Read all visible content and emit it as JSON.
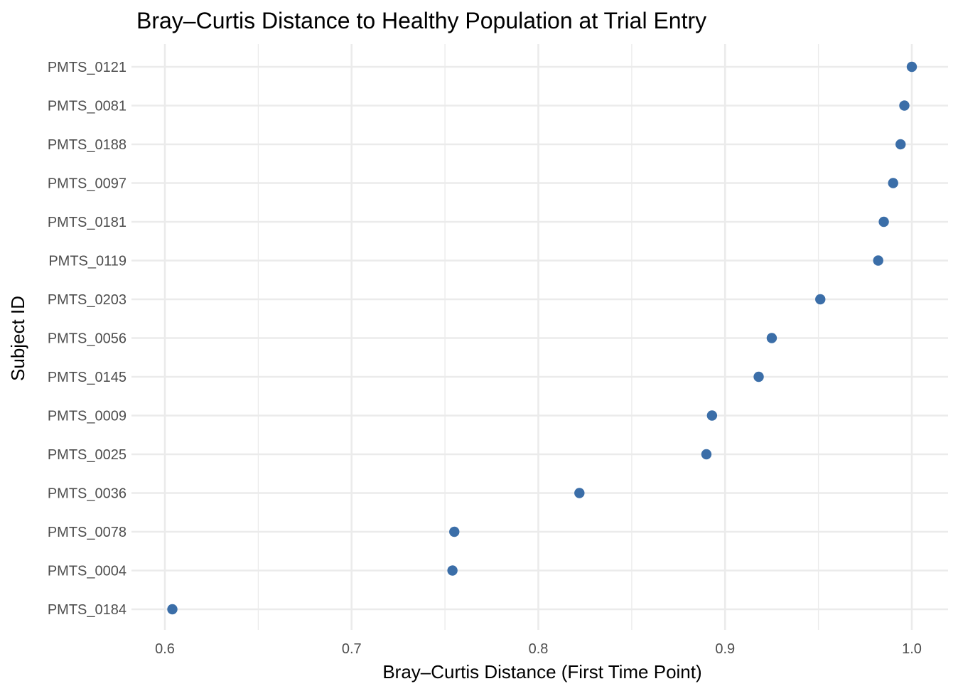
{
  "chart_data": {
    "type": "scatter",
    "title": "Bray–Curtis Distance to Healthy Population at Trial Entry",
    "xlabel": "Bray–Curtis Distance (First Time Point)",
    "ylabel": "Subject ID",
    "xlim": [
      0.6,
      1.0
    ],
    "xticks": [
      "0.6",
      "0.7",
      "0.8",
      "0.9",
      "1.0"
    ],
    "grid": true,
    "point_color": "#3b6ea8",
    "categories": [
      "PMTS_0121",
      "PMTS_0081",
      "PMTS_0188",
      "PMTS_0097",
      "PMTS_0181",
      "PMTS_0119",
      "PMTS_0203",
      "PMTS_0056",
      "PMTS_0145",
      "PMTS_0009",
      "PMTS_0025",
      "PMTS_0036",
      "PMTS_0078",
      "PMTS_0004",
      "PMTS_0184"
    ],
    "values": [
      1.0,
      0.996,
      0.994,
      0.99,
      0.985,
      0.982,
      0.951,
      0.925,
      0.918,
      0.893,
      0.89,
      0.822,
      0.755,
      0.754,
      0.604
    ]
  }
}
